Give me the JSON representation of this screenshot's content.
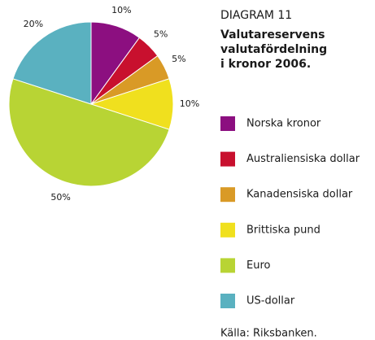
{
  "chart_data": {
    "type": "pie",
    "title": "DIAGRAM 11",
    "subtitle": [
      "Valutareservens",
      "valutafördelning",
      "i kronor 2006."
    ],
    "categories": [
      "Norska kronor",
      "Australiensiska dollar",
      "Kanadensiska dollar",
      "Brittiska pund",
      "Euro",
      "US-dollar"
    ],
    "values": [
      10,
      5,
      5,
      10,
      50,
      20
    ],
    "value_labels": [
      "10%",
      "5%",
      "5%",
      "10%",
      "50%",
      "20%"
    ],
    "colors": [
      "#8c0f80",
      "#c8102e",
      "#d99a26",
      "#f0e01e",
      "#b8d434",
      "#5ab1c0"
    ],
    "source": "Källa: Riksbanken."
  }
}
